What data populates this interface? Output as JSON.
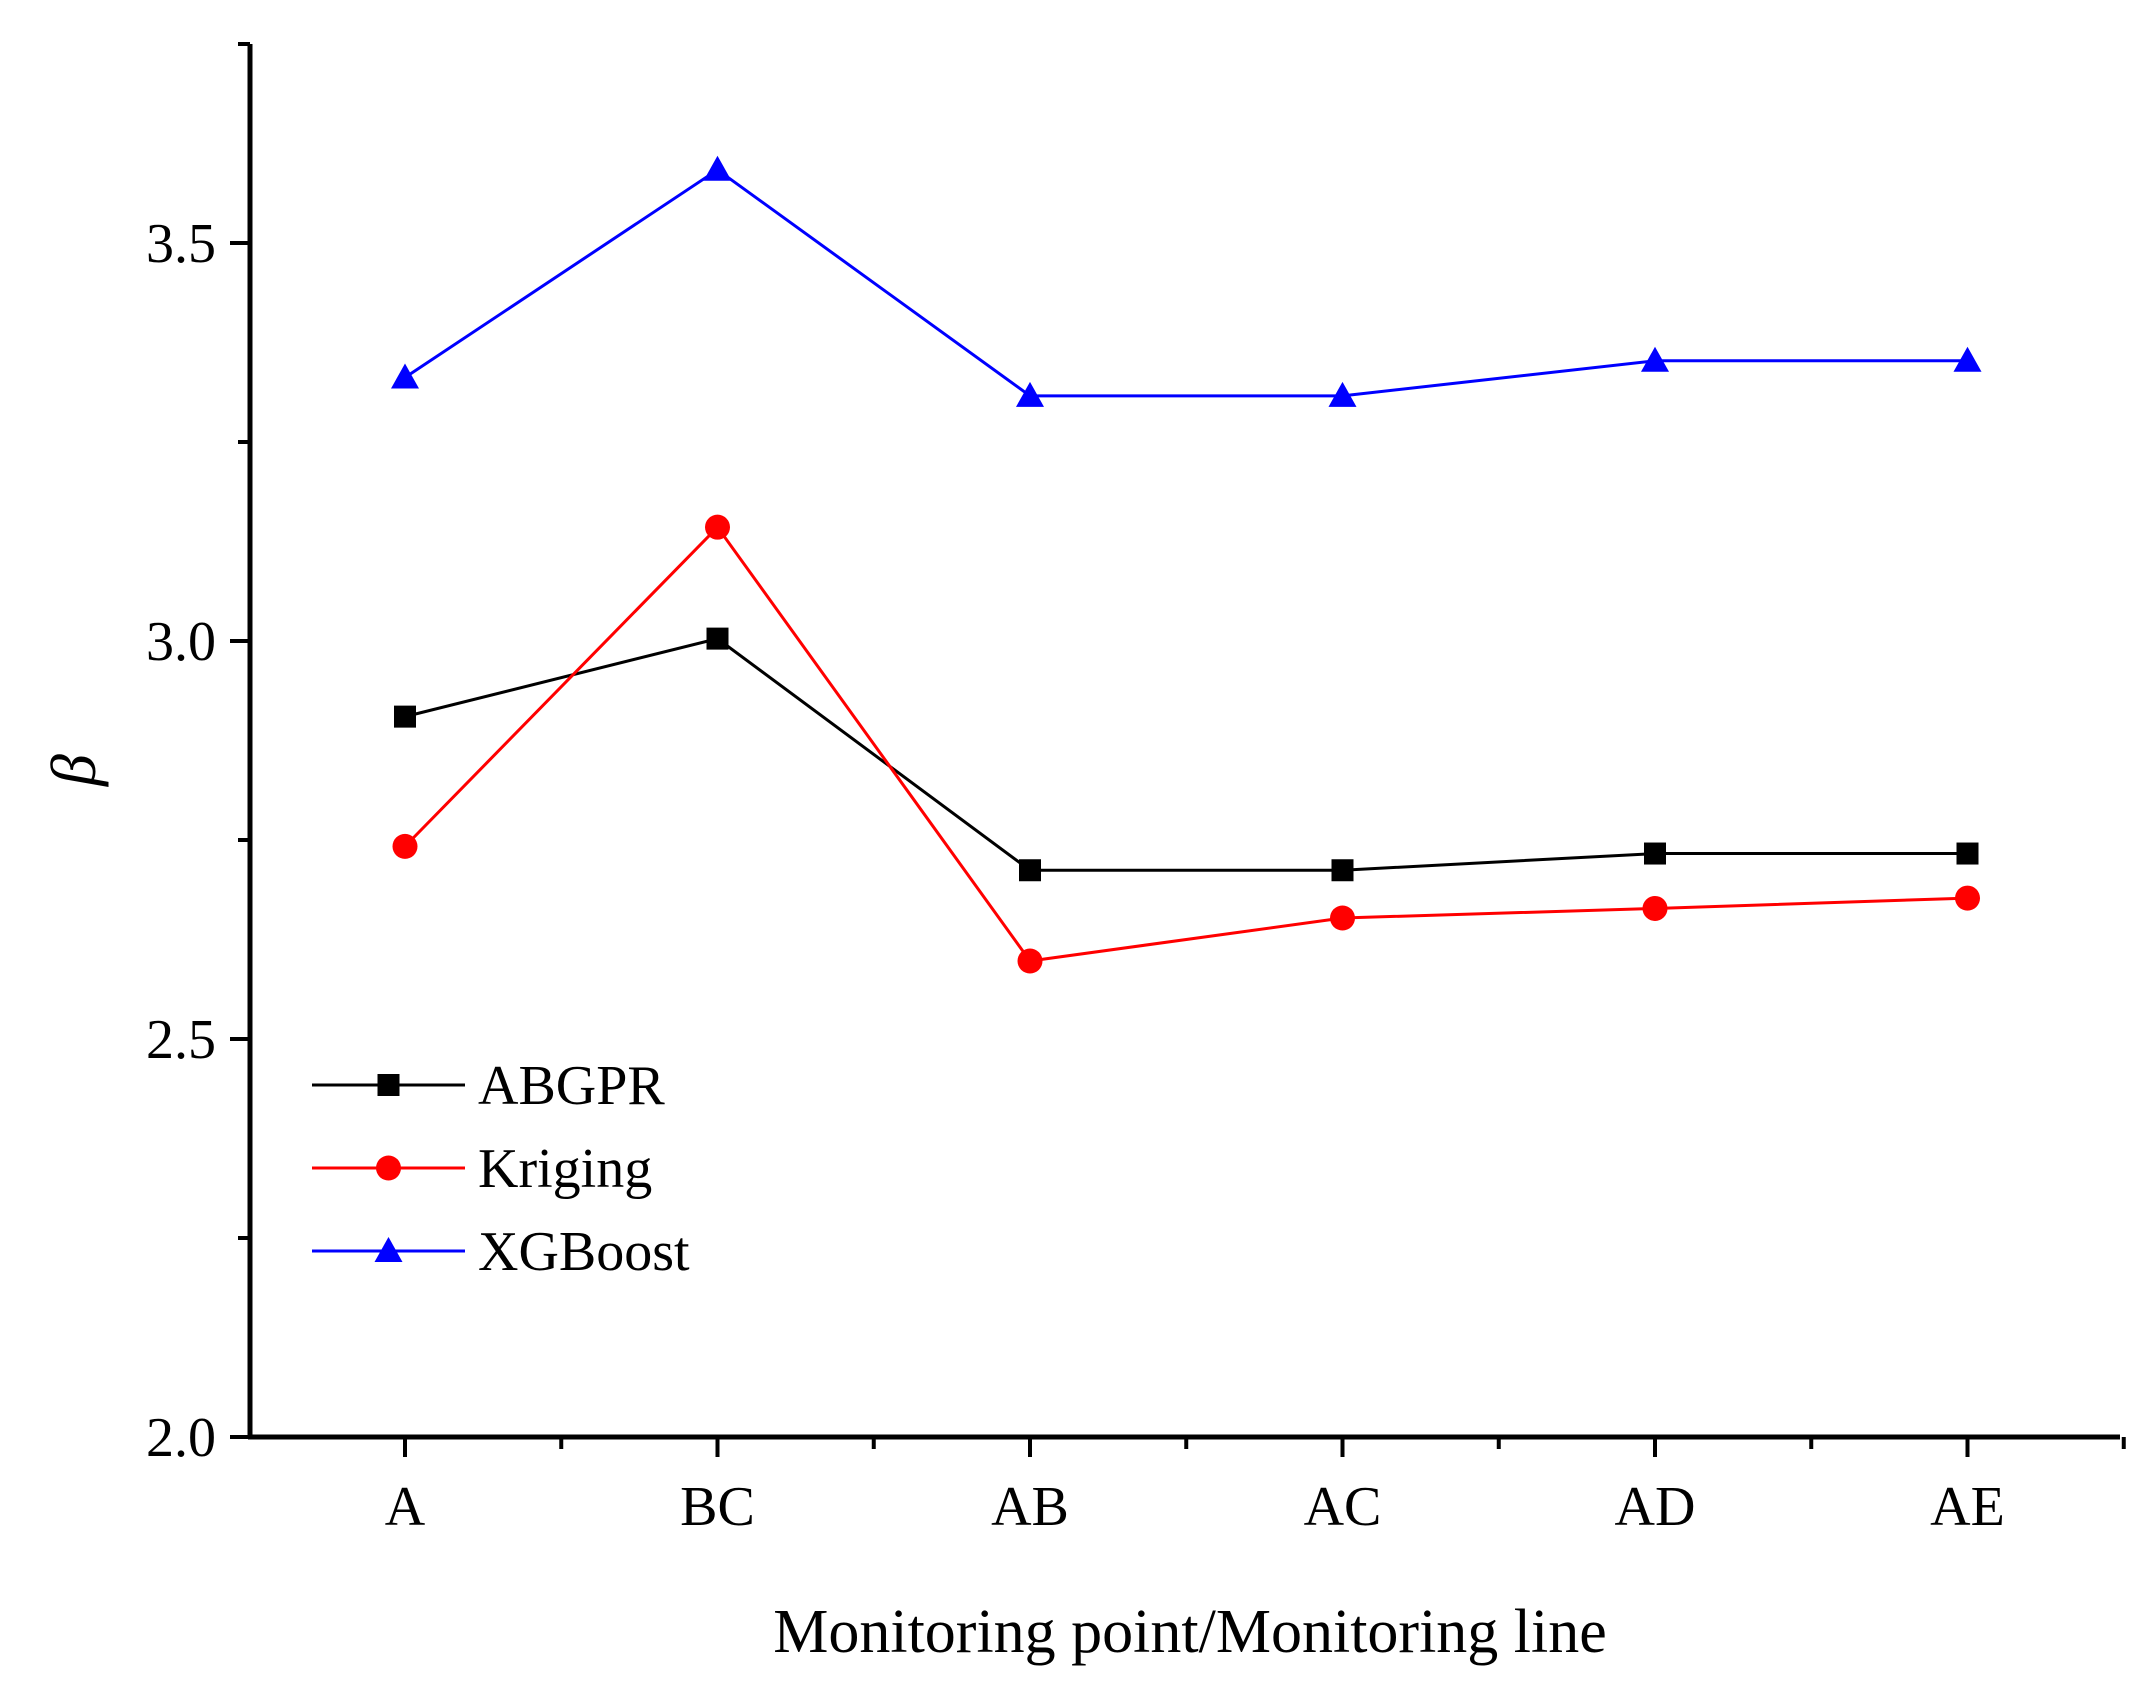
{
  "chart_data": {
    "type": "line",
    "title": "",
    "xlabel": "Monitoring point/Monitoring line",
    "ylabel": "β",
    "categories": [
      "A",
      "BC",
      "AB",
      "AC",
      "AD",
      "AE"
    ],
    "ylim": [
      2.0,
      3.75
    ],
    "yticks": [
      {
        "value": 2.0,
        "label": "2.0"
      },
      {
        "value": 2.5,
        "label": "2.5"
      },
      {
        "value": 3.0,
        "label": "3.0"
      },
      {
        "value": 3.5,
        "label": "3.5"
      }
    ],
    "yminor_ticks": [
      2.25,
      2.75,
      3.25,
      3.75
    ],
    "grid": false,
    "legend_position": "lower-left",
    "series": [
      {
        "name": "ABGPR",
        "color": "#000000",
        "marker": "square",
        "values": [
          2.905,
          3.003,
          2.712,
          2.712,
          2.733,
          2.733
        ]
      },
      {
        "name": "Kriging",
        "color": "#ff0000",
        "marker": "circle",
        "values": [
          2.742,
          3.143,
          2.598,
          2.652,
          2.664,
          2.677
        ]
      },
      {
        "name": "XGBoost",
        "color": "#0000ff",
        "marker": "triangle",
        "values": [
          3.331,
          3.592,
          3.308,
          3.308,
          3.352,
          3.352
        ]
      }
    ]
  }
}
